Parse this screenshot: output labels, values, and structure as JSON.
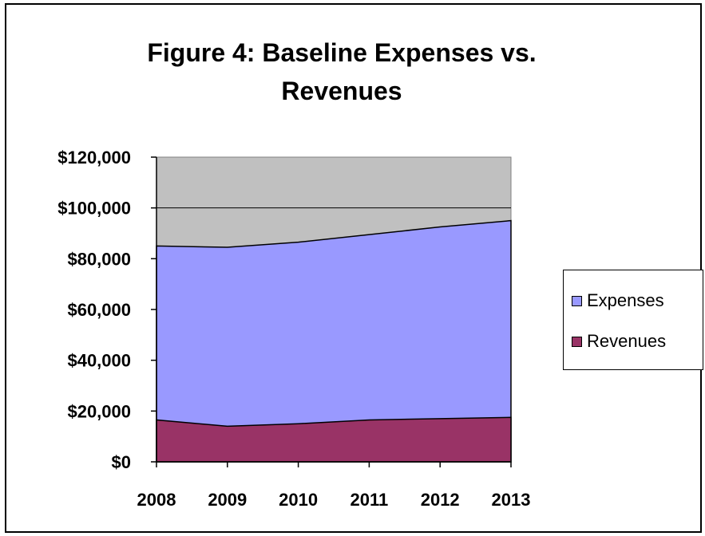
{
  "chart_data": {
    "type": "area",
    "title": "Figure 4: Baseline Expenses vs. Revenues",
    "xlabel": "",
    "ylabel": "",
    "categories": [
      "2008",
      "2009",
      "2010",
      "2011",
      "2012",
      "2013"
    ],
    "ylim": [
      0,
      120000
    ],
    "yticks": [
      0,
      20000,
      40000,
      60000,
      80000,
      100000,
      120000
    ],
    "ytick_labels": [
      "$0",
      "$20,000",
      "$40,000",
      "$60,000",
      "$80,000",
      "$100,000",
      "$120,000"
    ],
    "grid": true,
    "legend_position": "right",
    "plot_background": "#c0c0c0",
    "series": [
      {
        "name": "Expenses",
        "values": [
          85000,
          84500,
          86500,
          89500,
          92500,
          95000
        ],
        "color": "#9999ff"
      },
      {
        "name": "Revenues",
        "values": [
          16500,
          14000,
          15000,
          16500,
          17000,
          17500
        ],
        "color": "#993366"
      }
    ]
  }
}
